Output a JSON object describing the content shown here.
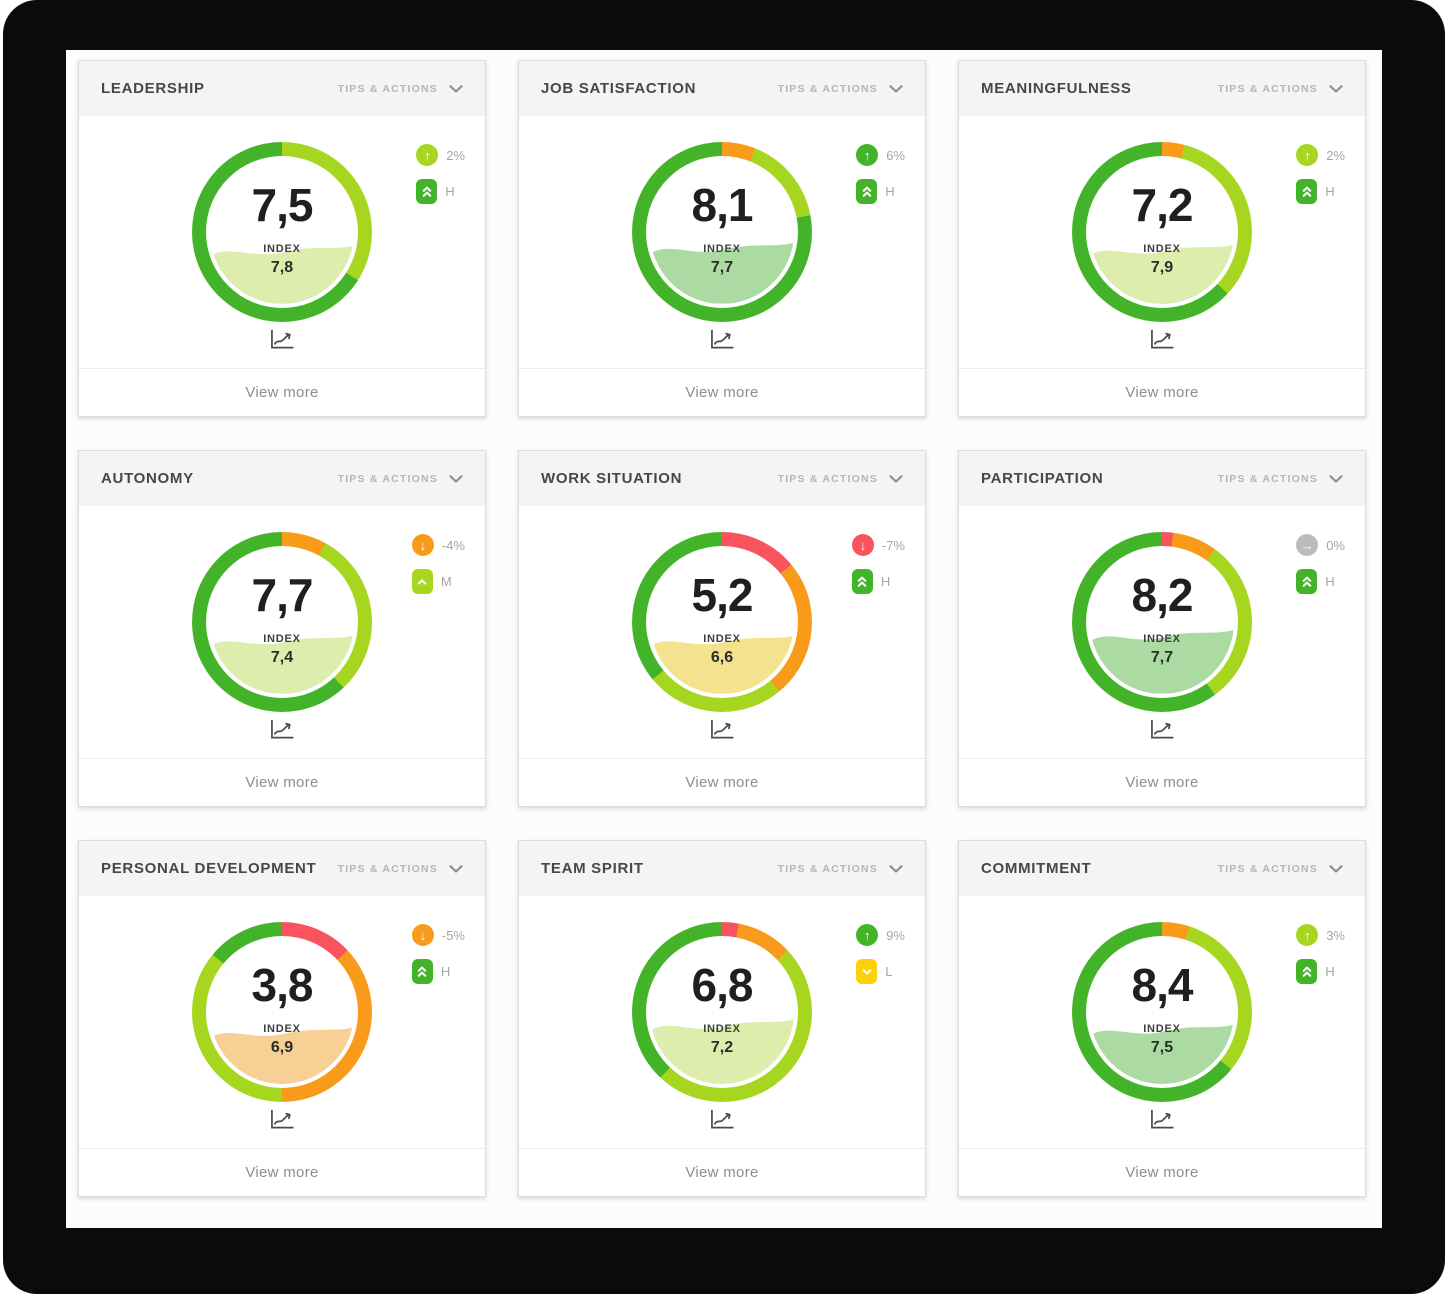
{
  "labels": {
    "tips_actions": "TIPS & ACTIONS",
    "index": "INDEX",
    "view_more": "View more"
  },
  "palette": {
    "green": "#43b32a",
    "lime": "#a7d620",
    "orange": "#f89b1b",
    "red": "#f9545e",
    "gray": "#bcbcbc",
    "yellow": "#fdd108",
    "pale_lime": "#dcedae",
    "pale_green": "#abdaa3",
    "pale_yellow": "#f3e38f",
    "pale_orange": "#f6d094"
  },
  "cards": [
    {
      "title": "LEADERSHIP",
      "score": "7,5",
      "index_value": "7,8",
      "ring": [
        {
          "color": "lime",
          "to": 34
        },
        {
          "color": "green",
          "to": 100
        }
      ],
      "fill": {
        "color": "pale_lime",
        "level": 45
      },
      "change": {
        "value": "2%",
        "direction": "up",
        "color": "lime"
      },
      "level": {
        "value": "H",
        "glyph": "double-up",
        "color": "green"
      }
    },
    {
      "title": "JOB SATISFACTION",
      "score": "8,1",
      "index_value": "7,7",
      "ring": [
        {
          "color": "orange",
          "to": 6
        },
        {
          "color": "lime",
          "to": 22
        },
        {
          "color": "green",
          "to": 100
        }
      ],
      "fill": {
        "color": "pale_green",
        "level": 47
      },
      "change": {
        "value": "6%",
        "direction": "up",
        "color": "green"
      },
      "level": {
        "value": "H",
        "glyph": "double-up",
        "color": "green"
      }
    },
    {
      "title": "MEANINGFULNESS",
      "score": "7,2",
      "index_value": "7,9",
      "ring": [
        {
          "color": "orange",
          "to": 4
        },
        {
          "color": "lime",
          "to": 37
        },
        {
          "color": "green",
          "to": 100
        }
      ],
      "fill": {
        "color": "pale_lime",
        "level": 46
      },
      "change": {
        "value": "2%",
        "direction": "up",
        "color": "lime"
      },
      "level": {
        "value": "H",
        "glyph": "double-up",
        "color": "green"
      }
    },
    {
      "title": "AUTONOMY",
      "score": "7,7",
      "index_value": "7,4",
      "ring": [
        {
          "color": "orange",
          "to": 8
        },
        {
          "color": "lime",
          "to": 38
        },
        {
          "color": "green",
          "to": 100
        }
      ],
      "fill": {
        "color": "pale_lime",
        "level": 45
      },
      "change": {
        "value": "-4%",
        "direction": "down",
        "color": "orange"
      },
      "level": {
        "value": "M",
        "glyph": "up",
        "color": "lime"
      }
    },
    {
      "title": "WORK SITUATION",
      "score": "5,2",
      "index_value": "6,6",
      "ring": [
        {
          "color": "red",
          "to": 14
        },
        {
          "color": "orange",
          "to": 39
        },
        {
          "color": "lime",
          "to": 64
        },
        {
          "color": "green",
          "to": 100
        }
      ],
      "fill": {
        "color": "pale_yellow",
        "level": 45
      },
      "change": {
        "value": "-7%",
        "direction": "down",
        "color": "red"
      },
      "level": {
        "value": "H",
        "glyph": "double-up",
        "color": "green"
      }
    },
    {
      "title": "PARTICIPATION",
      "score": "8,2",
      "index_value": "7,7",
      "ring": [
        {
          "color": "red",
          "to": 2
        },
        {
          "color": "orange",
          "to": 10
        },
        {
          "color": "lime",
          "to": 40
        },
        {
          "color": "green",
          "to": 100
        }
      ],
      "fill": {
        "color": "pale_green",
        "level": 49
      },
      "change": {
        "value": "0%",
        "direction": "flat",
        "color": "gray"
      },
      "level": {
        "value": "H",
        "glyph": "double-up",
        "color": "green"
      }
    },
    {
      "title": "PERSONAL DEVELOPMENT",
      "score": "3,8",
      "index_value": "6,9",
      "ring": [
        {
          "color": "red",
          "to": 13
        },
        {
          "color": "orange",
          "to": 50
        },
        {
          "color": "lime",
          "to": 86
        },
        {
          "color": "green",
          "to": 100
        }
      ],
      "fill": {
        "color": "pale_orange",
        "level": 44
      },
      "change": {
        "value": "-5%",
        "direction": "down",
        "color": "orange"
      },
      "level": {
        "value": "H",
        "glyph": "double-up",
        "color": "green"
      }
    },
    {
      "title": "TEAM SPIRIT",
      "score": "6,8",
      "index_value": "7,2",
      "ring": [
        {
          "color": "red",
          "to": 3
        },
        {
          "color": "orange",
          "to": 13
        },
        {
          "color": "lime",
          "to": 62
        },
        {
          "color": "green",
          "to": 100
        }
      ],
      "fill": {
        "color": "pale_lime",
        "level": 50
      },
      "change": {
        "value": "9%",
        "direction": "up",
        "color": "green"
      },
      "level": {
        "value": "L",
        "glyph": "down",
        "color": "yellow"
      }
    },
    {
      "title": "COMMITMENT",
      "score": "8,4",
      "index_value": "7,5",
      "ring": [
        {
          "color": "orange",
          "to": 5
        },
        {
          "color": "lime",
          "to": 36
        },
        {
          "color": "green",
          "to": 100
        }
      ],
      "fill": {
        "color": "pale_green",
        "level": 46
      },
      "change": {
        "value": "3%",
        "direction": "up",
        "color": "lime"
      },
      "level": {
        "value": "H",
        "glyph": "double-up",
        "color": "green"
      }
    }
  ]
}
